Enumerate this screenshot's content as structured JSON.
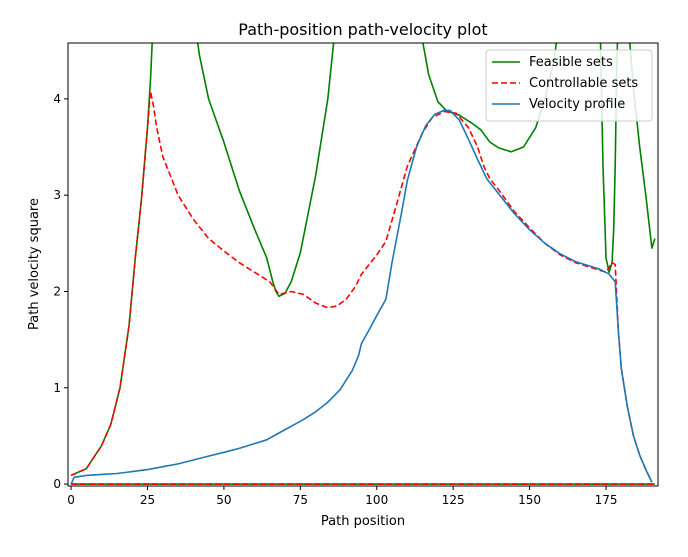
{
  "chart_data": {
    "type": "line",
    "title": "Path-position path-velocity plot",
    "xlabel": "Path position",
    "ylabel": "Path velocity square",
    "xlim": [
      -1,
      192
    ],
    "ylim": [
      -0.02,
      4.58
    ],
    "xticks": [
      0,
      25,
      50,
      75,
      100,
      125,
      150,
      175
    ],
    "yticks": [
      0,
      1,
      2,
      3,
      4
    ],
    "grid": false,
    "legend_position": "top-right",
    "series": [
      {
        "name": "Feasible sets",
        "color": "#008000",
        "dash": "solid",
        "curves": [
          [
            [
              0,
              0.09
            ],
            [
              5,
              0.16
            ],
            [
              10,
              0.4
            ],
            [
              13,
              0.62
            ],
            [
              16,
              1.0
            ],
            [
              19,
              1.65
            ],
            [
              21,
              2.35
            ],
            [
              23,
              2.95
            ],
            [
              25,
              3.7
            ],
            [
              26,
              4.2
            ],
            [
              27,
              4.9
            ]
          ],
          [
            [
              40,
              4.9
            ],
            [
              42,
              4.45
            ],
            [
              45,
              4.0
            ],
            [
              50,
              3.55
            ],
            [
              55,
              3.05
            ],
            [
              60,
              2.65
            ],
            [
              64,
              2.35
            ],
            [
              66,
              2.1
            ],
            [
              67,
              2.0
            ],
            [
              68,
              1.95
            ],
            [
              70,
              1.98
            ],
            [
              72,
              2.1
            ],
            [
              75,
              2.4
            ],
            [
              80,
              3.2
            ],
            [
              84,
              4.0
            ],
            [
              86,
              4.62
            ],
            [
              87,
              4.9
            ]
          ],
          [
            [
              114,
              4.9
            ],
            [
              115,
              4.6
            ],
            [
              117,
              4.25
            ],
            [
              120,
              3.97
            ],
            [
              123,
              3.87
            ],
            [
              127,
              3.83
            ],
            [
              131,
              3.75
            ],
            [
              134,
              3.68
            ],
            [
              137,
              3.55
            ],
            [
              140,
              3.49
            ],
            [
              144,
              3.45
            ],
            [
              148,
              3.5
            ],
            [
              152,
              3.7
            ],
            [
              155,
              4.0
            ],
            [
              158,
              4.4
            ],
            [
              160,
              4.9
            ]
          ],
          [
            [
              173,
              4.9
            ],
            [
              174,
              3.3
            ],
            [
              175,
              2.35
            ],
            [
              176,
              2.2
            ],
            [
              177,
              2.3
            ],
            [
              177.5,
              2.65
            ],
            [
              178,
              3.3
            ],
            [
              178.5,
              4.3
            ],
            [
              179,
              4.9
            ]
          ],
          [
            [
              182,
              4.9
            ],
            [
              184,
              4.1
            ],
            [
              186,
              3.5
            ],
            [
              188,
              3.0
            ],
            [
              190,
              2.45
            ],
            [
              191,
              2.55
            ]
          ],
          [
            [
              0,
              0.0
            ],
            [
              191,
              0.0
            ]
          ]
        ]
      },
      {
        "name": "Controllable sets",
        "color": "#ff0000",
        "dash": "dashed",
        "curves": [
          [
            [
              0,
              0.09
            ],
            [
              5,
              0.16
            ],
            [
              10,
              0.4
            ],
            [
              13,
              0.62
            ],
            [
              16,
              1.0
            ],
            [
              19,
              1.65
            ],
            [
              21,
              2.35
            ],
            [
              23,
              2.95
            ],
            [
              25,
              3.7
            ],
            [
              26,
              4.08
            ],
            [
              27,
              3.92
            ],
            [
              28,
              3.7
            ],
            [
              30,
              3.4
            ],
            [
              35,
              3.0
            ],
            [
              40,
              2.75
            ],
            [
              45,
              2.55
            ],
            [
              50,
              2.42
            ],
            [
              55,
              2.3
            ],
            [
              60,
              2.2
            ],
            [
              65,
              2.1
            ],
            [
              68,
              1.97
            ],
            [
              72,
              2.0
            ],
            [
              76,
              1.97
            ],
            [
              80,
              1.88
            ],
            [
              84,
              1.83
            ],
            [
              87,
              1.85
            ],
            [
              90,
              1.92
            ],
            [
              93,
              2.05
            ],
            [
              95,
              2.18
            ],
            [
              100,
              2.38
            ],
            [
              103,
              2.52
            ],
            [
              106,
              2.85
            ],
            [
              110,
              3.3
            ],
            [
              115,
              3.65
            ],
            [
              118,
              3.8
            ],
            [
              122,
              3.87
            ],
            [
              126,
              3.85
            ],
            [
              130,
              3.7
            ],
            [
              133,
              3.5
            ],
            [
              135,
              3.3
            ],
            [
              137,
              3.17
            ],
            [
              140,
              3.05
            ],
            [
              145,
              2.83
            ],
            [
              150,
              2.66
            ],
            [
              155,
              2.5
            ],
            [
              160,
              2.38
            ],
            [
              165,
              2.3
            ],
            [
              170,
              2.25
            ],
            [
              173,
              2.22
            ],
            [
              175,
              2.2
            ],
            [
              176,
              2.25
            ],
            [
              177,
              2.3
            ],
            [
              178,
              2.28
            ],
            [
              179,
              1.6
            ],
            [
              180,
              1.2
            ],
            [
              182,
              0.8
            ],
            [
              184,
              0.5
            ],
            [
              186,
              0.3
            ],
            [
              188,
              0.15
            ],
            [
              190,
              0.02
            ]
          ],
          [
            [
              0,
              0.0
            ],
            [
              191,
              0.0
            ]
          ]
        ]
      },
      {
        "name": "Velocity profile",
        "color": "#1f77b4",
        "dash": "solid",
        "curves": [
          [
            [
              0,
              0.0
            ],
            [
              1,
              0.07
            ],
            [
              5,
              0.09
            ],
            [
              10,
              0.1
            ],
            [
              15,
              0.11
            ],
            [
              20,
              0.13
            ],
            [
              25,
              0.15
            ],
            [
              30,
              0.18
            ],
            [
              35,
              0.21
            ],
            [
              40,
              0.25
            ],
            [
              45,
              0.29
            ],
            [
              50,
              0.33
            ],
            [
              55,
              0.37
            ],
            [
              60,
              0.42
            ],
            [
              64,
              0.46
            ],
            [
              68,
              0.53
            ],
            [
              72,
              0.6
            ],
            [
              76,
              0.67
            ],
            [
              80,
              0.75
            ],
            [
              84,
              0.85
            ],
            [
              88,
              0.98
            ],
            [
              92,
              1.18
            ],
            [
              94,
              1.33
            ],
            [
              95,
              1.46
            ],
            [
              98,
              1.63
            ],
            [
              100,
              1.75
            ],
            [
              103,
              1.92
            ],
            [
              105,
              2.3
            ],
            [
              108,
              2.8
            ],
            [
              110,
              3.15
            ],
            [
              113,
              3.5
            ],
            [
              116,
              3.72
            ],
            [
              119,
              3.84
            ],
            [
              122,
              3.88
            ],
            [
              124,
              3.88
            ],
            [
              127,
              3.78
            ],
            [
              130,
              3.58
            ],
            [
              133,
              3.37
            ],
            [
              136,
              3.17
            ],
            [
              140,
              3.01
            ],
            [
              145,
              2.81
            ],
            [
              150,
              2.64
            ],
            [
              155,
              2.5
            ],
            [
              160,
              2.39
            ],
            [
              165,
              2.31
            ],
            [
              170,
              2.26
            ],
            [
              173,
              2.23
            ],
            [
              176,
              2.18
            ],
            [
              178,
              2.1
            ],
            [
              179,
              1.6
            ],
            [
              180,
              1.2
            ],
            [
              182,
              0.8
            ],
            [
              184,
              0.5
            ],
            [
              186,
              0.3
            ],
            [
              188,
              0.15
            ],
            [
              190,
              0.02
            ]
          ]
        ]
      }
    ]
  }
}
